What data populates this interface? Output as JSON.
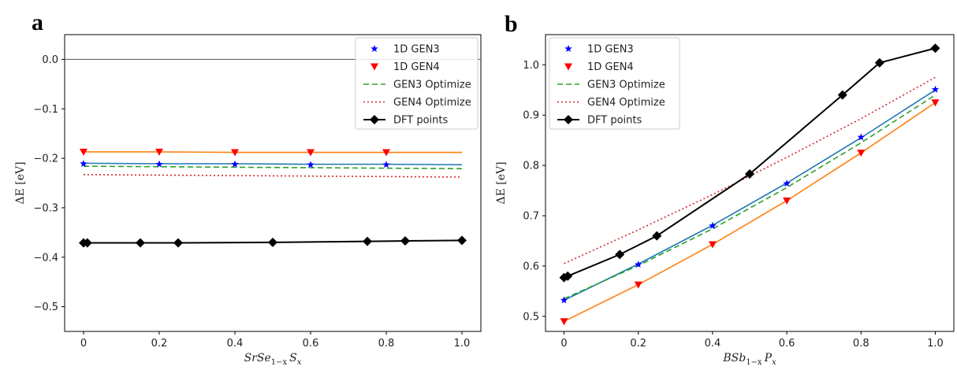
{
  "chart_data": [
    {
      "panel": "a",
      "type": "line",
      "xlabel": "SrSe1−xSx",
      "xlabel_parts": {
        "pre": "SrSe",
        "sub1": "1−x",
        "mid": "S",
        "sub2": "x"
      },
      "ylabel": "ΔE [eV]",
      "xlim": [
        -0.05,
        1.05
      ],
      "ylim": [
        -0.55,
        0.05
      ],
      "xticks": [
        0,
        0.2,
        0.4,
        0.6,
        0.8,
        1.0
      ],
      "xtick_labels": [
        "0",
        "0.2",
        "0.4",
        "0.6",
        "0.8",
        "1.0"
      ],
      "yticks": [
        0.0,
        -0.1,
        -0.2,
        -0.3,
        -0.4,
        -0.5
      ],
      "ytick_labels": [
        "0.0",
        "−0.1",
        "−0.2",
        "−0.3",
        "−0.4",
        "−0.5"
      ],
      "reference_line_y": 0.0,
      "legend_position": "top-right",
      "series": [
        {
          "name": "1D GEN3",
          "kind": "marker",
          "marker": "star",
          "color": "#0000ff",
          "x": [
            0,
            0.2,
            0.4,
            0.6,
            0.8
          ],
          "y": [
            -0.211,
            -0.212,
            -0.212,
            -0.213,
            -0.213
          ]
        },
        {
          "name": "1D GEN4",
          "kind": "marker",
          "marker": "triangle-down",
          "color": "#ff0000",
          "x": [
            0,
            0.2,
            0.4,
            0.6,
            0.8
          ],
          "y": [
            -0.187,
            -0.187,
            -0.188,
            -0.188,
            -0.188
          ]
        },
        {
          "name": "GEN3 Optimize",
          "kind": "line",
          "style": "dashed",
          "color": "#2ca02c",
          "x": [
            0,
            1.0
          ],
          "y": [
            -0.216,
            -0.221
          ]
        },
        {
          "name": "GEN4 Optimize",
          "kind": "line",
          "style": "dotted",
          "color": "#d62728",
          "x": [
            0,
            1.0
          ],
          "y": [
            -0.233,
            -0.238
          ]
        },
        {
          "name": "DFT points",
          "kind": "line-marker",
          "marker": "diamond",
          "color": "#000000",
          "x": [
            0,
            0.01,
            0.15,
            0.25,
            0.5,
            0.75,
            0.85,
            1.0
          ],
          "y": [
            -0.371,
            -0.371,
            -0.371,
            -0.371,
            -0.37,
            -0.368,
            -0.367,
            -0.366
          ]
        },
        {
          "name": "",
          "kind": "line",
          "style": "solid",
          "color": "#1f77b4",
          "x": [
            0,
            0.2,
            0.4,
            0.6,
            0.8,
            1.0
          ],
          "y": [
            -0.21,
            -0.211,
            -0.211,
            -0.212,
            -0.212,
            -0.213
          ]
        },
        {
          "name": "",
          "kind": "line",
          "style": "solid",
          "color": "#ff7f0e",
          "x": [
            0,
            0.2,
            0.4,
            0.6,
            0.8,
            1.0
          ],
          "y": [
            -0.187,
            -0.187,
            -0.188,
            -0.188,
            -0.188,
            -0.188
          ]
        }
      ],
      "legend_order": [
        0,
        1,
        2,
        3,
        4
      ]
    },
    {
      "panel": "b",
      "type": "line",
      "xlabel": "BSb1−xPx",
      "xlabel_parts": {
        "pre": "BSb",
        "sub1": "1−x",
        "mid": "P",
        "sub2": "x"
      },
      "ylabel": "ΔE [eV]",
      "xlim": [
        -0.05,
        1.05
      ],
      "ylim": [
        0.47,
        1.06
      ],
      "xticks": [
        0,
        0.2,
        0.4,
        0.6,
        0.8,
        1.0
      ],
      "xtick_labels": [
        "0",
        "0.2",
        "0.4",
        "0.6",
        "0.8",
        "1.0"
      ],
      "yticks": [
        0.5,
        0.6,
        0.7,
        0.8,
        0.9,
        1.0
      ],
      "ytick_labels": [
        "0.5",
        "0.6",
        "0.7",
        "0.8",
        "0.9",
        "1.0"
      ],
      "legend_position": "top-left",
      "series": [
        {
          "name": "1D GEN3",
          "kind": "marker",
          "marker": "star",
          "color": "#0000ff",
          "x": [
            0,
            0.2,
            0.4,
            0.6,
            0.8,
            1.0
          ],
          "y": [
            0.532,
            0.603,
            0.68,
            0.764,
            0.856,
            0.951
          ]
        },
        {
          "name": "1D GEN4",
          "kind": "marker",
          "marker": "triangle-down",
          "color": "#ff0000",
          "x": [
            0,
            0.2,
            0.4,
            0.6,
            0.8,
            1.0
          ],
          "y": [
            0.49,
            0.563,
            0.643,
            0.73,
            0.825,
            0.925
          ]
        },
        {
          "name": "GEN3 Optimize",
          "kind": "line",
          "style": "dashed",
          "color": "#2ca02c",
          "x": [
            0,
            0.2,
            0.4,
            0.6,
            0.8,
            1.0
          ],
          "y": [
            0.535,
            0.601,
            0.674,
            0.756,
            0.845,
            0.94
          ]
        },
        {
          "name": "GEN4 Optimize",
          "kind": "line",
          "style": "dotted",
          "color": "#d62728",
          "x": [
            0,
            0.2,
            0.4,
            0.6,
            0.8,
            1.0
          ],
          "y": [
            0.605,
            0.672,
            0.742,
            0.816,
            0.893,
            0.975
          ]
        },
        {
          "name": "DFT points",
          "kind": "line-marker",
          "marker": "diamond",
          "color": "#000000",
          "x": [
            0,
            0.01,
            0.15,
            0.25,
            0.5,
            0.75,
            0.85,
            1.0
          ],
          "y": [
            0.577,
            0.58,
            0.623,
            0.66,
            0.783,
            0.94,
            1.004,
            1.033
          ]
        },
        {
          "name": "",
          "kind": "line",
          "style": "solid",
          "color": "#1f77b4",
          "x": [
            0,
            0.2,
            0.4,
            0.6,
            0.8,
            1.0
          ],
          "y": [
            0.532,
            0.604,
            0.681,
            0.765,
            0.855,
            0.95
          ]
        },
        {
          "name": "",
          "kind": "line",
          "style": "solid",
          "color": "#ff7f0e",
          "x": [
            0,
            0.2,
            0.4,
            0.6,
            0.8,
            1.0
          ],
          "y": [
            0.49,
            0.563,
            0.643,
            0.73,
            0.825,
            0.925
          ]
        }
      ],
      "legend_order": [
        0,
        1,
        2,
        3,
        4
      ]
    }
  ]
}
